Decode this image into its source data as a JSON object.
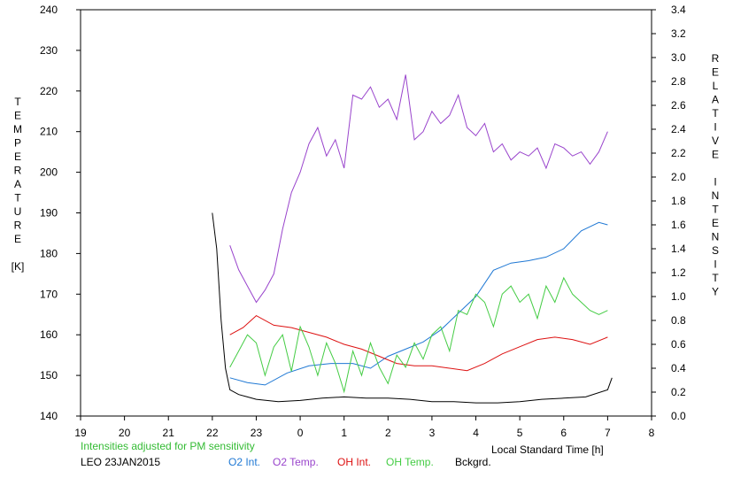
{
  "chart_data": {
    "type": "line",
    "title": "",
    "note": "Intensities adjusted for PM sensitivity",
    "station_label": "LEO 23JAN2015",
    "xlabel": "Local Standard Time [h]",
    "ylabel_left": [
      "T",
      "E",
      "M",
      "P",
      "E",
      "R",
      "A",
      "T",
      "U",
      "R",
      "E",
      "",
      "[K]"
    ],
    "ylabel_right": [
      "R",
      "E",
      "L",
      "A",
      "T",
      "I",
      "V",
      "E",
      "",
      "I",
      "N",
      "T",
      "E",
      "N",
      "S",
      "I",
      "T",
      "Y"
    ],
    "xlim": [
      19,
      32
    ],
    "x_tick_values": [
      19,
      20,
      21,
      22,
      23,
      24,
      25,
      26,
      27,
      28,
      29,
      30,
      31,
      32
    ],
    "x_tick_labels": [
      "19",
      "20",
      "21",
      "22",
      "23",
      "0",
      "1",
      "2",
      "3",
      "4",
      "5",
      "6",
      "7",
      "8"
    ],
    "ylim_left": [
      140,
      240
    ],
    "y_left_ticks": [
      140,
      150,
      160,
      170,
      180,
      190,
      200,
      210,
      220,
      230,
      240
    ],
    "ylim_right": [
      0.0,
      3.4
    ],
    "y_right_ticks": [
      "0.0",
      "0.2",
      "0.4",
      "0.6",
      "0.8",
      "1.0",
      "1.2",
      "1.4",
      "1.6",
      "1.8",
      "2.0",
      "2.2",
      "2.4",
      "2.6",
      "2.8",
      "3.0",
      "3.2",
      "3.4"
    ],
    "grid": false,
    "legend_position": "bottom",
    "series": [
      {
        "name": "O2 Int.",
        "axis": "right",
        "color": "#1f78d4",
        "x": [
          22.4,
          22.8,
          23.2,
          23.7,
          24.2,
          24.7,
          25.2,
          25.6,
          26.0,
          26.4,
          26.8,
          27.2,
          27.6,
          28.0,
          28.4,
          28.8,
          29.2,
          29.6,
          30.0,
          30.4,
          30.8,
          31.0
        ],
        "y": [
          0.32,
          0.28,
          0.26,
          0.36,
          0.42,
          0.44,
          0.44,
          0.4,
          0.5,
          0.56,
          0.62,
          0.72,
          0.86,
          1.0,
          1.22,
          1.28,
          1.3,
          1.33,
          1.4,
          1.55,
          1.62,
          1.6
        ]
      },
      {
        "name": "O2 Temp.",
        "axis": "left",
        "color": "#9944cc",
        "x": [
          22.4,
          22.6,
          22.8,
          23.0,
          23.2,
          23.4,
          23.6,
          23.8,
          24.0,
          24.2,
          24.4,
          24.6,
          24.8,
          25.0,
          25.2,
          25.4,
          25.6,
          25.8,
          26.0,
          26.2,
          26.4,
          26.6,
          26.8,
          27.0,
          27.2,
          27.4,
          27.6,
          27.8,
          28.0,
          28.2,
          28.4,
          28.6,
          28.8,
          29.0,
          29.2,
          29.4,
          29.6,
          29.8,
          30.0,
          30.2,
          30.4,
          30.6,
          30.8,
          31.0
        ],
        "y": [
          182,
          176,
          172,
          168,
          171,
          175,
          186,
          195,
          200,
          207,
          211,
          204,
          208,
          201,
          219,
          218,
          221,
          216,
          218,
          213,
          224,
          208,
          210,
          215,
          212,
          214,
          219,
          211,
          209,
          212,
          205,
          207,
          203,
          205,
          204,
          206,
          201,
          207,
          206,
          204,
          205,
          202,
          205,
          210
        ]
      },
      {
        "name": "OH Int.",
        "axis": "right",
        "color": "#dd1111",
        "x": [
          22.4,
          22.7,
          23.0,
          23.4,
          23.8,
          24.2,
          24.6,
          25.0,
          25.4,
          25.8,
          26.2,
          26.6,
          27.0,
          27.4,
          27.8,
          28.2,
          28.6,
          29.0,
          29.4,
          29.8,
          30.2,
          30.6,
          31.0
        ],
        "y": [
          0.68,
          0.74,
          0.84,
          0.76,
          0.74,
          0.7,
          0.66,
          0.6,
          0.56,
          0.5,
          0.44,
          0.42,
          0.42,
          0.4,
          0.38,
          0.44,
          0.52,
          0.58,
          0.64,
          0.66,
          0.64,
          0.6,
          0.66
        ]
      },
      {
        "name": "OH Temp.",
        "axis": "left",
        "color": "#44cc44",
        "x": [
          22.4,
          22.6,
          22.8,
          23.0,
          23.2,
          23.4,
          23.6,
          23.8,
          24.0,
          24.2,
          24.4,
          24.6,
          24.8,
          25.0,
          25.2,
          25.4,
          25.6,
          25.8,
          26.0,
          26.2,
          26.4,
          26.6,
          26.8,
          27.0,
          27.2,
          27.4,
          27.6,
          27.8,
          28.0,
          28.2,
          28.4,
          28.6,
          28.8,
          29.0,
          29.2,
          29.4,
          29.6,
          29.8,
          30.0,
          30.2,
          30.4,
          30.6,
          30.8,
          31.0
        ],
        "y": [
          152,
          156,
          160,
          158,
          150,
          157,
          160,
          151,
          162,
          157,
          150,
          158,
          153,
          146,
          156,
          150,
          158,
          152,
          148,
          155,
          152,
          158,
          154,
          160,
          162,
          156,
          166,
          165,
          170,
          168,
          162,
          170,
          172,
          168,
          170,
          164,
          172,
          168,
          174,
          170,
          168,
          166,
          165,
          166
        ]
      },
      {
        "name": "Bckgrd.",
        "axis": "right",
        "color": "#000000",
        "x": [
          22.0,
          22.1,
          22.2,
          22.3,
          22.4,
          22.6,
          22.8,
          23.0,
          23.5,
          24.0,
          24.5,
          25.0,
          25.5,
          26.0,
          26.5,
          27.0,
          27.5,
          28.0,
          28.5,
          29.0,
          29.5,
          30.0,
          30.5,
          31.0,
          31.1
        ],
        "y": [
          1.7,
          1.4,
          0.8,
          0.4,
          0.22,
          0.18,
          0.16,
          0.14,
          0.12,
          0.13,
          0.15,
          0.16,
          0.15,
          0.15,
          0.14,
          0.12,
          0.12,
          0.11,
          0.11,
          0.12,
          0.14,
          0.15,
          0.16,
          0.22,
          0.32
        ]
      }
    ]
  }
}
